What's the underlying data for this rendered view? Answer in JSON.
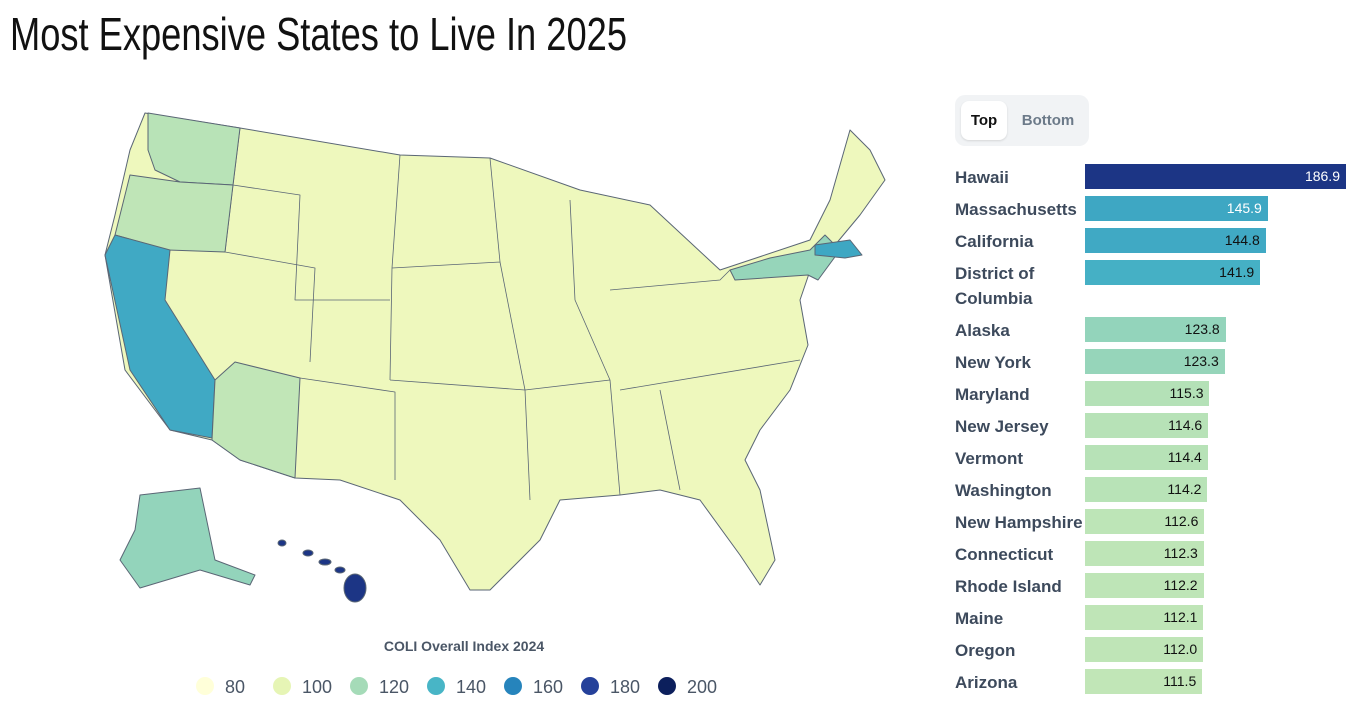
{
  "title": "Most Expensive States to Live In 2025",
  "tabs": [
    "Top",
    "Bottom"
  ],
  "legend": {
    "title": "COLI Overall Index 2024",
    "items": [
      {
        "value": 80,
        "color": "#ffffd9"
      },
      {
        "value": 100,
        "color": "#e6f5b5"
      },
      {
        "value": 120,
        "color": "#a5dbb8"
      },
      {
        "value": 140,
        "color": "#48b5c6"
      },
      {
        "value": 160,
        "color": "#2684bc"
      },
      {
        "value": 180,
        "color": "#25419a"
      },
      {
        "value": 200,
        "color": "#0c1f5c"
      }
    ]
  },
  "rankings": {
    "xlim": [
      50,
      186.9
    ],
    "names": [
      "Hawaii",
      "Massachusetts",
      "California",
      "District of Columbia",
      "Alaska",
      "New York",
      "Maryland",
      "New Jersey",
      "Vermont",
      "Washington",
      "New Hampshire",
      "Connecticut",
      "Rhode Island",
      "Maine",
      "Oregon",
      "Arizona"
    ],
    "values": [
      186.9,
      145.9,
      144.8,
      141.9,
      123.8,
      123.3,
      115.3,
      114.6,
      114.4,
      114.2,
      112.6,
      112.3,
      112.2,
      112.1,
      112.0,
      111.5
    ],
    "value_labels": [
      "186.9",
      "145.9",
      "144.8",
      "141.9",
      "123.8",
      "123.3",
      "115.3",
      "114.6",
      "114.4",
      "114.2",
      "112.6",
      "112.3",
      "112.2",
      "112.1",
      "112.0",
      "111.5"
    ]
  }
}
